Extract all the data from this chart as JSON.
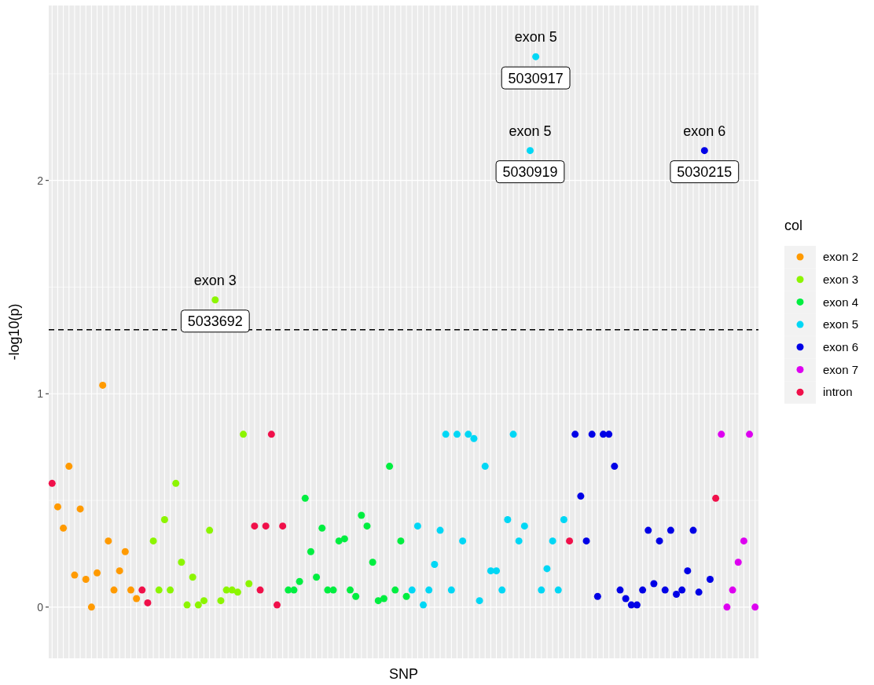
{
  "chart_data": {
    "type": "scatter",
    "xlabel": "SNP",
    "ylabel": "-log10(p)",
    "legend_title": "col",
    "legend": "right",
    "grid": true,
    "marker": "circle",
    "tick_labels": "y",
    "categories": [
      null,
      null,
      null,
      null,
      null,
      null,
      null,
      null,
      null,
      null,
      null,
      null,
      null,
      null,
      null,
      null,
      null,
      null,
      null,
      null,
      null,
      null,
      null,
      null,
      null,
      null,
      null,
      null,
      null,
      null,
      null,
      null,
      null,
      null,
      null,
      null,
      null,
      null,
      null,
      null,
      null,
      null,
      null,
      null,
      null,
      null,
      null,
      null,
      null,
      null,
      null,
      null,
      null,
      null,
      null,
      null,
      null,
      null,
      null,
      null,
      null,
      null,
      null,
      null,
      null,
      null,
      null,
      null,
      null,
      null,
      null,
      null,
      null,
      null,
      null,
      null,
      null,
      null,
      null,
      null,
      null,
      null,
      null,
      null,
      null,
      null,
      null,
      null,
      null,
      null,
      null,
      null,
      null,
      null,
      null,
      null,
      null,
      null,
      null,
      null,
      null,
      null,
      null,
      null,
      null,
      null,
      null,
      null,
      null,
      null,
      null,
      null,
      null,
      null,
      null,
      null,
      null,
      null,
      null,
      null,
      null,
      null,
      null,
      null,
      null,
      null
    ],
    "ylim": [
      -0.24,
      2.82
    ],
    "yticks": [
      0,
      {
        "value": 0.5,
        "label": null
      },
      1,
      {
        "value": 1.5,
        "label": null
      },
      2,
      {
        "value": 2.5,
        "label": null
      }
    ],
    "ref_lines": [
      {
        "axis": "y",
        "value": 1.3,
        "color": "#000000",
        "line_style": "dashed"
      }
    ],
    "annotations": [
      {
        "text": "exon 3",
        "y": 1.44
      },
      {
        "text": "5033692",
        "y": 1.44
      },
      {
        "text": "exon 5",
        "y": 2.58
      },
      {
        "text": "5030917",
        "y": 2.58
      },
      {
        "text": "exon 5",
        "y": 2.14
      },
      {
        "text": "5030919",
        "y": 2.14
      },
      {
        "text": "exon 6",
        "y": 2.14
      },
      {
        "text": "5030215",
        "y": 2.14
      }
    ],
    "series": [
      {
        "name": "exon 2",
        "color": "#ff9a00",
        "values": [
          null,
          0.47,
          0.37,
          0.66,
          0.15,
          0.46,
          0.13,
          0,
          0.16,
          1.04,
          0.31,
          0.08,
          0.17,
          0.26,
          0.08,
          0.04,
          null,
          null,
          null,
          null,
          null,
          null,
          null,
          null,
          null,
          null,
          null,
          null,
          null,
          null,
          null,
          null,
          null,
          null,
          null,
          null,
          null,
          null,
          null,
          null,
          null,
          null,
          null,
          null,
          null,
          null,
          null,
          null,
          null,
          null,
          null,
          null,
          null,
          null,
          null,
          null,
          null,
          null,
          null,
          null,
          null,
          null,
          null,
          null,
          null,
          null,
          null,
          null,
          null,
          null,
          null,
          null,
          null,
          null,
          null,
          null,
          null,
          null,
          null,
          null,
          null,
          null,
          null,
          null,
          null,
          null,
          null,
          null,
          null,
          null,
          null,
          null,
          null,
          null,
          null,
          null,
          null,
          null,
          null,
          null,
          null,
          null,
          null,
          null,
          null,
          null,
          null,
          null,
          null,
          null,
          null,
          null,
          null,
          null,
          null,
          null,
          null,
          null,
          null,
          null,
          null,
          null,
          null,
          null,
          null,
          null
        ]
      },
      {
        "name": "exon 3",
        "color": "#8cf500",
        "values": [
          null,
          null,
          null,
          null,
          null,
          null,
          null,
          null,
          null,
          null,
          null,
          null,
          null,
          null,
          null,
          null,
          null,
          null,
          0.31,
          0.08,
          0.41,
          0.08,
          0.58,
          0.21,
          0.01,
          0.14,
          0.01,
          0.03,
          0.36,
          1.44,
          0.03,
          0.08,
          0.08,
          0.07,
          0.81,
          0.11,
          null,
          null,
          null,
          null,
          null,
          null,
          null,
          null,
          null,
          null,
          null,
          null,
          null,
          null,
          null,
          null,
          null,
          null,
          null,
          null,
          null,
          null,
          null,
          null,
          null,
          null,
          null,
          null,
          null,
          null,
          null,
          null,
          null,
          null,
          null,
          null,
          null,
          null,
          null,
          null,
          null,
          null,
          null,
          null,
          null,
          null,
          null,
          null,
          null,
          null,
          null,
          null,
          null,
          null,
          null,
          null,
          null,
          null,
          null,
          null,
          null,
          null,
          null,
          null,
          null,
          null,
          null,
          null,
          null,
          null,
          null,
          null,
          null,
          null,
          null,
          null,
          null,
          null,
          null,
          null,
          null,
          null,
          null,
          null,
          null,
          null,
          null,
          null,
          null,
          null
        ]
      },
      {
        "name": "exon 4",
        "color": "#00ee40",
        "values": [
          null,
          null,
          null,
          null,
          null,
          null,
          null,
          null,
          null,
          null,
          null,
          null,
          null,
          null,
          null,
          null,
          null,
          null,
          null,
          null,
          null,
          null,
          null,
          null,
          null,
          null,
          null,
          null,
          null,
          null,
          null,
          null,
          null,
          null,
          null,
          null,
          null,
          null,
          null,
          null,
          null,
          null,
          0.08,
          0.08,
          0.12,
          0.51,
          0.26,
          0.14,
          0.37,
          0.08,
          0.08,
          0.31,
          0.32,
          0.08,
          0.05,
          0.43,
          0.38,
          0.21,
          0.03,
          0.04,
          0.66,
          0.08,
          0.31,
          0.05,
          null,
          null,
          null,
          null,
          null,
          null,
          null,
          null,
          null,
          null,
          null,
          null,
          null,
          null,
          null,
          null,
          null,
          null,
          null,
          null,
          null,
          null,
          null,
          null,
          null,
          null,
          null,
          null,
          null,
          null,
          null,
          null,
          null,
          null,
          null,
          null,
          null,
          null,
          null,
          null,
          null,
          null,
          null,
          null,
          null,
          null,
          null,
          null,
          null,
          null,
          null,
          null,
          null,
          null,
          null,
          null,
          null,
          null,
          null,
          null,
          null,
          null
        ]
      },
      {
        "name": "exon 5",
        "color": "#00d7f5",
        "values": [
          null,
          null,
          null,
          null,
          null,
          null,
          null,
          null,
          null,
          null,
          null,
          null,
          null,
          null,
          null,
          null,
          null,
          null,
          null,
          null,
          null,
          null,
          null,
          null,
          null,
          null,
          null,
          null,
          null,
          null,
          null,
          null,
          null,
          null,
          null,
          null,
          null,
          null,
          null,
          null,
          null,
          null,
          null,
          null,
          null,
          null,
          null,
          null,
          null,
          null,
          null,
          null,
          null,
          null,
          null,
          null,
          null,
          null,
          null,
          null,
          null,
          null,
          null,
          null,
          0.08,
          0.38,
          0.01,
          0.08,
          0.2,
          0.36,
          0.81,
          0.08,
          0.81,
          0.31,
          0.81,
          0.79,
          0.03,
          0.66,
          0.17,
          0.17,
          0.08,
          0.41,
          0.81,
          0.31,
          0.38,
          2.14,
          2.58,
          0.08,
          0.18,
          0.31,
          0.08,
          0.41,
          null,
          null,
          null,
          null,
          null,
          null,
          null,
          null,
          null,
          null,
          null,
          null,
          null,
          null,
          null,
          null,
          null,
          null,
          null,
          null,
          null,
          null,
          null,
          null,
          null,
          null,
          null,
          null,
          null,
          null,
          null,
          null,
          null,
          null
        ]
      },
      {
        "name": "exon 6",
        "color": "#0000e6",
        "values": [
          null,
          null,
          null,
          null,
          null,
          null,
          null,
          null,
          null,
          null,
          null,
          null,
          null,
          null,
          null,
          null,
          null,
          null,
          null,
          null,
          null,
          null,
          null,
          null,
          null,
          null,
          null,
          null,
          null,
          null,
          null,
          null,
          null,
          null,
          null,
          null,
          null,
          null,
          null,
          null,
          null,
          null,
          null,
          null,
          null,
          null,
          null,
          null,
          null,
          null,
          null,
          null,
          null,
          null,
          null,
          null,
          null,
          null,
          null,
          null,
          null,
          null,
          null,
          null,
          null,
          null,
          null,
          null,
          null,
          null,
          null,
          null,
          null,
          null,
          null,
          null,
          null,
          null,
          null,
          null,
          null,
          null,
          null,
          null,
          null,
          null,
          null,
          null,
          null,
          null,
          null,
          null,
          null,
          0.81,
          0.52,
          0.31,
          0.81,
          0.05,
          0.81,
          0.81,
          0.66,
          0.08,
          0.04,
          0.01,
          0.01,
          0.08,
          0.36,
          0.11,
          0.31,
          0.08,
          0.36,
          0.06,
          0.08,
          0.17,
          0.36,
          0.07,
          2.14,
          0.13,
          null,
          null,
          null,
          null,
          null,
          null,
          null,
          null
        ]
      },
      {
        "name": "exon 7",
        "color": "#dd00f0",
        "values": [
          null,
          null,
          null,
          null,
          null,
          null,
          null,
          null,
          null,
          null,
          null,
          null,
          null,
          null,
          null,
          null,
          null,
          null,
          null,
          null,
          null,
          null,
          null,
          null,
          null,
          null,
          null,
          null,
          null,
          null,
          null,
          null,
          null,
          null,
          null,
          null,
          null,
          null,
          null,
          null,
          null,
          null,
          null,
          null,
          null,
          null,
          null,
          null,
          null,
          null,
          null,
          null,
          null,
          null,
          null,
          null,
          null,
          null,
          null,
          null,
          null,
          null,
          null,
          null,
          null,
          null,
          null,
          null,
          null,
          null,
          null,
          null,
          null,
          null,
          null,
          null,
          null,
          null,
          null,
          null,
          null,
          null,
          null,
          null,
          null,
          null,
          null,
          null,
          null,
          null,
          null,
          null,
          null,
          null,
          null,
          null,
          null,
          null,
          null,
          null,
          null,
          null,
          null,
          null,
          null,
          null,
          null,
          null,
          null,
          null,
          null,
          null,
          null,
          null,
          null,
          null,
          null,
          null,
          null,
          0.81,
          0,
          0.08,
          0.21,
          0.31,
          0.81,
          0
        ]
      },
      {
        "name": "intron",
        "color": "#f0104a",
        "values": [
          0.58,
          null,
          null,
          null,
          null,
          null,
          null,
          null,
          null,
          null,
          null,
          null,
          null,
          null,
          null,
          null,
          0.08,
          0.02,
          null,
          null,
          null,
          null,
          null,
          null,
          null,
          null,
          null,
          null,
          null,
          null,
          null,
          null,
          null,
          null,
          null,
          null,
          0.38,
          0.08,
          0.38,
          0.81,
          0.01,
          0.38,
          null,
          null,
          null,
          null,
          null,
          null,
          null,
          null,
          null,
          null,
          null,
          null,
          null,
          null,
          null,
          null,
          null,
          null,
          null,
          null,
          null,
          null,
          null,
          null,
          null,
          null,
          null,
          null,
          null,
          null,
          null,
          null,
          null,
          null,
          null,
          null,
          null,
          null,
          null,
          null,
          null,
          null,
          null,
          null,
          null,
          null,
          null,
          null,
          null,
          null,
          0.31,
          null,
          null,
          null,
          null,
          null,
          null,
          null,
          null,
          null,
          null,
          null,
          null,
          null,
          null,
          null,
          null,
          null,
          null,
          null,
          null,
          null,
          null,
          null,
          null,
          null,
          0.51,
          null,
          null,
          null,
          null,
          null,
          null,
          null
        ]
      }
    ]
  }
}
